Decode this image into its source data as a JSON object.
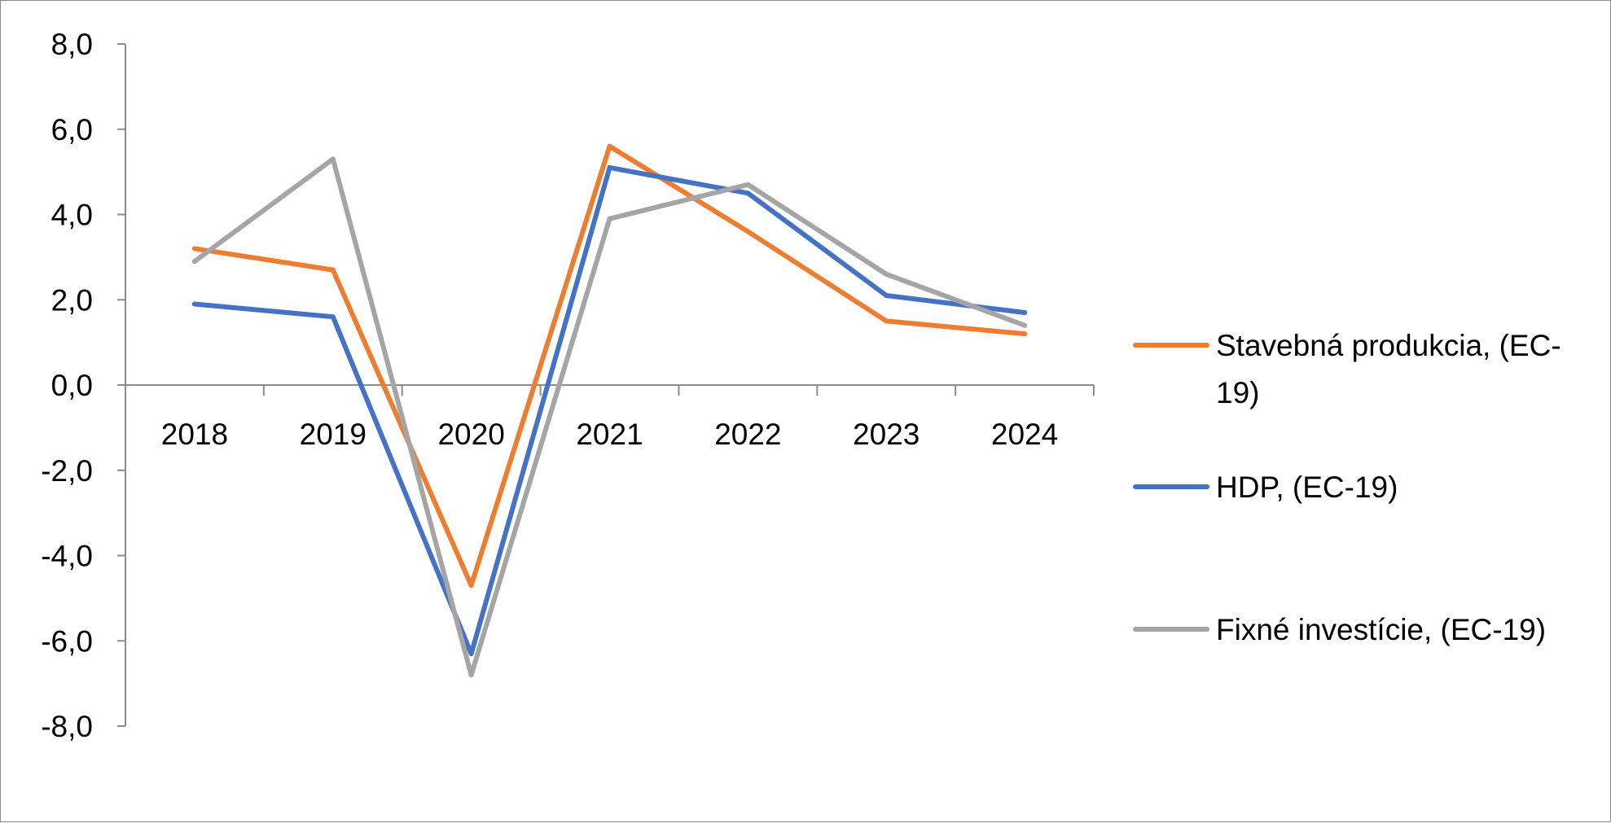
{
  "chart_data": {
    "type": "line",
    "title": "",
    "xlabel": "",
    "ylabel": "",
    "categories": [
      "2018",
      "2019",
      "2020",
      "2021",
      "2022",
      "2023",
      "2024"
    ],
    "ylim": [
      -8,
      8
    ],
    "y_tick_step": 2,
    "y_tick_labels": [
      "8,0",
      "6,0",
      "4,0",
      "2,0",
      "0,0",
      "-2,0",
      "-4,0",
      "-6,0",
      "-8,0"
    ],
    "grid": false,
    "legend_position": "right",
    "series": [
      {
        "name": "Stavebná produkcia, (EC-19)",
        "legend_lines": [
          "Stavebná produkcia, (EC-",
          "19)"
        ],
        "color": "#ed7d31",
        "values": [
          3.2,
          2.7,
          -4.7,
          5.6,
          3.6,
          1.5,
          1.2
        ]
      },
      {
        "name": "HDP, (EC-19)",
        "legend_lines": [
          "HDP, (EC-19)"
        ],
        "color": "#4472c4",
        "values": [
          1.9,
          1.6,
          -6.3,
          5.1,
          4.5,
          2.1,
          1.7
        ]
      },
      {
        "name": "Fixné investície, (EC-19)",
        "legend_lines": [
          "Fixné investície, (EC-19)"
        ],
        "color": "#a5a5a5",
        "values": [
          2.9,
          5.3,
          -6.8,
          3.9,
          4.7,
          2.6,
          1.4
        ]
      }
    ]
  }
}
